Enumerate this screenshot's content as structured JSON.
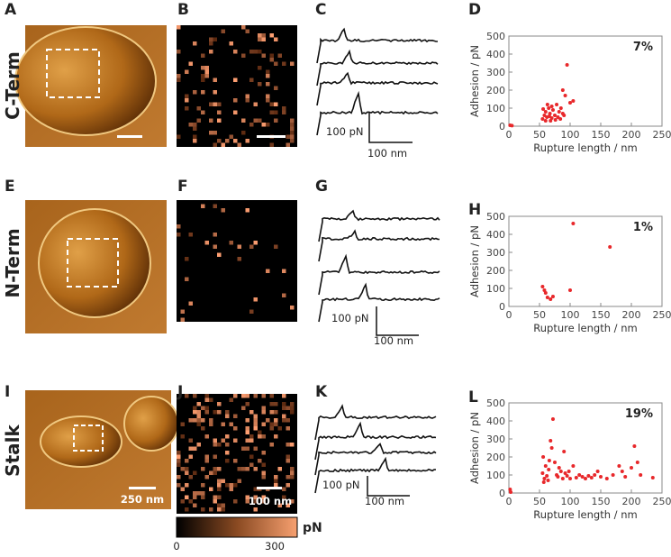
{
  "panels": {
    "letters": [
      "A",
      "B",
      "C",
      "D",
      "E",
      "F",
      "G",
      "H",
      "I",
      "J",
      "K",
      "L"
    ],
    "row_labels": [
      "C-Term",
      "N-Term",
      "Stalk"
    ],
    "force_scale": {
      "force": "100 pN",
      "distance": "100 nm"
    },
    "image_scale": "250 nm",
    "map_scale": "100 nm",
    "colorbar": {
      "min": "0",
      "max": "300",
      "unit": "pN"
    }
  },
  "chart_data": [
    {
      "type": "scatter",
      "annotation": "7%",
      "x_label": "Rupture length / nm",
      "y_label": "Adhesion / pN",
      "color": "#e8282b",
      "xlim": [
        0,
        250
      ],
      "ylim": [
        0,
        500
      ],
      "xticks": [
        0,
        50,
        100,
        150,
        200,
        250
      ],
      "yticks": [
        0,
        100,
        200,
        300,
        400,
        500
      ],
      "x": [
        2,
        5,
        55,
        58,
        60,
        62,
        65,
        67,
        70,
        72,
        75,
        78,
        80,
        82,
        85,
        88,
        90,
        92,
        95,
        100,
        105,
        68,
        60,
        56,
        63,
        76,
        84,
        70,
        88,
        66
      ],
      "values": [
        5,
        3,
        40,
        60,
        80,
        50,
        100,
        70,
        45,
        90,
        60,
        120,
        50,
        80,
        100,
        200,
        60,
        170,
        340,
        130,
        140,
        30,
        30,
        95,
        120,
        35,
        40,
        110,
        70,
        55
      ]
    },
    {
      "type": "scatter",
      "annotation": "1%",
      "x_label": "Rupture length / nm",
      "y_label": "Adhesion / pN",
      "color": "#e8282b",
      "xlim": [
        0,
        250
      ],
      "ylim": [
        0,
        500
      ],
      "xticks": [
        0,
        50,
        100,
        150,
        200,
        250
      ],
      "yticks": [
        0,
        100,
        200,
        300,
        400,
        500
      ],
      "x": [
        55,
        60,
        63,
        68,
        72,
        100,
        105,
        165,
        58
      ],
      "values": [
        110,
        75,
        50,
        40,
        55,
        90,
        460,
        330,
        90
      ]
    },
    {
      "type": "scatter",
      "annotation": "19%",
      "x_label": "Rupture length / nm",
      "y_label": "Adhesion / pN",
      "color": "#e8282b",
      "xlim": [
        0,
        250
      ],
      "ylim": [
        0,
        500
      ],
      "xticks": [
        0,
        50,
        100,
        150,
        200,
        250
      ],
      "yticks": [
        0,
        100,
        200,
        300,
        400,
        500
      ],
      "x": [
        2,
        3,
        55,
        58,
        60,
        62,
        65,
        68,
        70,
        72,
        75,
        78,
        80,
        85,
        88,
        90,
        92,
        95,
        100,
        105,
        110,
        115,
        120,
        125,
        130,
        135,
        140,
        145,
        150,
        160,
        170,
        180,
        185,
        190,
        200,
        205,
        210,
        215,
        235,
        57,
        64,
        82,
        98,
        56,
        66
      ],
      "values": [
        20,
        5,
        110,
        80,
        150,
        95,
        130,
        290,
        250,
        410,
        170,
        100,
        90,
        120,
        80,
        230,
        110,
        95,
        80,
        150,
        85,
        100,
        90,
        80,
        95,
        85,
        100,
        120,
        90,
        80,
        100,
        150,
        120,
        90,
        140,
        260,
        170,
        100,
        85,
        60,
        70,
        140,
        120,
        200,
        180
      ]
    }
  ]
}
